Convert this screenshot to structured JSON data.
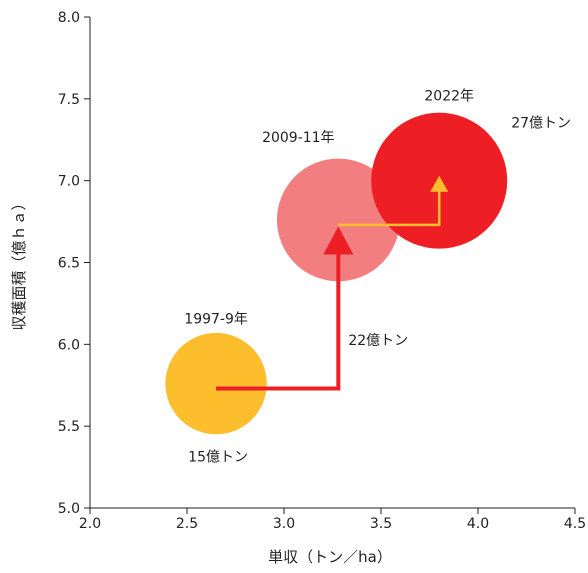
{
  "chart_data": {
    "type": "scatter",
    "subtype": "bubble",
    "xlabel": "単収（トン／ha）",
    "ylabel": "収穫面積（億ｈａ）",
    "xlim": [
      2.0,
      4.5
    ],
    "ylim": [
      5.0,
      8.0
    ],
    "x_ticks": [
      "2.0",
      "2.5",
      "3.0",
      "3.5",
      "4.0",
      "4.5"
    ],
    "y_ticks": [
      "5.0",
      "5.5",
      "6.0",
      "6.5",
      "7.0",
      "7.5",
      "8.0"
    ],
    "grid": false,
    "legend": false,
    "points": [
      {
        "period": "1997-9年",
        "x": 2.65,
        "y": 5.76,
        "production": "15億トン",
        "production_value": 15,
        "color": "#FDBE2E"
      },
      {
        "period": "2009-11年",
        "x": 3.28,
        "y": 6.76,
        "production": "22億トン",
        "production_value": 22,
        "color": "#F27E80"
      },
      {
        "period": "2022年",
        "x": 3.8,
        "y": 7.0,
        "production": "27億トン",
        "production_value": 27,
        "color": "#EE1E25"
      }
    ],
    "arrows": [
      {
        "from_x": 2.65,
        "from_y": 5.73,
        "corner_x": 3.28,
        "to_y": 6.72,
        "color": "#EE1E25"
      },
      {
        "from_x": 3.28,
        "from_y": 6.73,
        "corner_x": 3.8,
        "to_y": 7.03,
        "color": "#FDBE2E"
      }
    ]
  }
}
